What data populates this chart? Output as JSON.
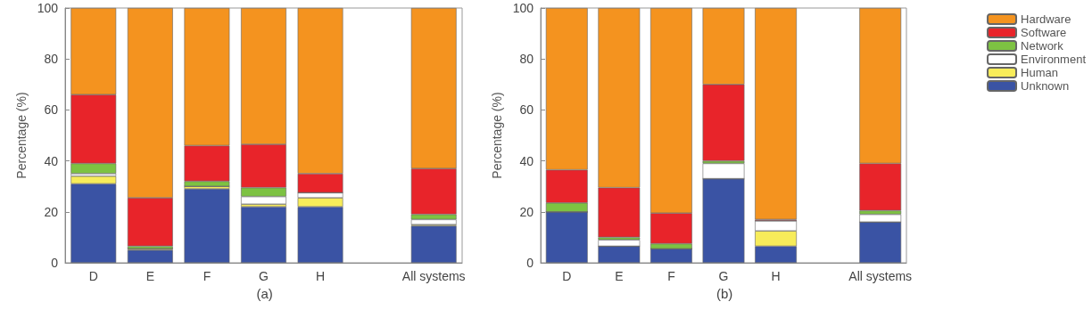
{
  "chart_data": [
    {
      "type": "bar",
      "stacked": true,
      "ylabel": "Percentage (%)",
      "annotations": [
        "(a)"
      ],
      "categories": [
        "D",
        "E",
        "F",
        "G",
        "H",
        null,
        "All systems"
      ],
      "ylim": [
        0,
        100
      ],
      "yticks": [
        0,
        20,
        40,
        60,
        80,
        100
      ],
      "grid": false,
      "legend": false,
      "series": [
        {
          "color": "#3a53a4",
          "values": [
            31,
            5,
            29,
            22,
            22,
            null,
            14.5
          ]
        },
        {
          "color": "#f7ec5a",
          "values": [
            3,
            0.5,
            1,
            1,
            3.5,
            null,
            0.5
          ]
        },
        {
          "color": "#ffffff",
          "values": [
            1,
            0,
            0,
            3,
            2,
            null,
            2
          ]
        },
        {
          "color": "#7dc242",
          "values": [
            4,
            1,
            2,
            3.5,
            0,
            null,
            2
          ]
        },
        {
          "color": "#e8242a",
          "values": [
            27,
            19,
            14,
            17,
            7.5,
            null,
            18
          ]
        },
        {
          "color": "#f4931f",
          "values": [
            34,
            74.5,
            54,
            53.5,
            65,
            null,
            63
          ]
        }
      ]
    },
    {
      "type": "bar",
      "stacked": true,
      "ylabel": "Percentage (%)",
      "annotations": [
        "(b)"
      ],
      "categories": [
        "D",
        "E",
        "F",
        "G",
        "H",
        null,
        "All systems"
      ],
      "ylim": [
        0,
        100
      ],
      "yticks": [
        0,
        20,
        40,
        60,
        80,
        100
      ],
      "grid": false,
      "legend": "right",
      "series": [
        {
          "name": "Unknown",
          "color": "#3a53a4",
          "values": [
            20,
            6.5,
            5.5,
            33,
            6.5,
            null,
            16
          ]
        },
        {
          "name": "Human",
          "color": "#f7ec5a",
          "values": [
            0,
            0,
            0,
            0,
            6,
            null,
            0
          ]
        },
        {
          "name": "Environment",
          "color": "#ffffff",
          "values": [
            0,
            2.5,
            0,
            6,
            4,
            null,
            3
          ]
        },
        {
          "name": "Network",
          "color": "#7dc242",
          "values": [
            3.5,
            1,
            2,
            1,
            0,
            null,
            1.5
          ]
        },
        {
          "name": "Software",
          "color": "#e8242a",
          "values": [
            13,
            19.5,
            12,
            30,
            0.5,
            null,
            18.5
          ]
        },
        {
          "name": "Hardware",
          "color": "#f4931f",
          "values": [
            63.5,
            70.5,
            80.5,
            30,
            83,
            null,
            61
          ]
        }
      ]
    }
  ]
}
